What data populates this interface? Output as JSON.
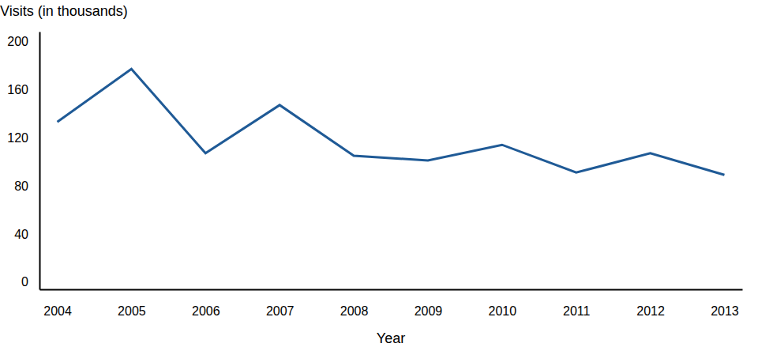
{
  "chart_data": {
    "type": "line",
    "y_label": "Visits (in thousands)",
    "x_label": "Year",
    "categories": [
      "2004",
      "2005",
      "2006",
      "2007",
      "2008",
      "2009",
      "2010",
      "2011",
      "2012",
      "2013"
    ],
    "values": [
      133,
      177,
      107,
      147,
      105,
      101,
      114,
      91,
      107,
      89
    ],
    "color": "#1f5a96",
    "ylim": [
      -6,
      208
    ],
    "yticks": [
      0,
      40,
      80,
      120,
      160,
      200
    ],
    "grid": false
  }
}
